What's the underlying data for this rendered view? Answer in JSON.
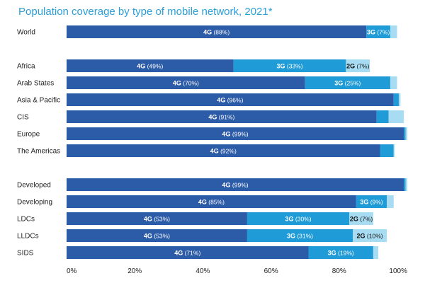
{
  "chart_data": {
    "type": "bar",
    "orientation": "horizontal",
    "stacked": true,
    "title": "Population coverage by type of mobile network, 2021*",
    "xlim": [
      0,
      100
    ],
    "x_ticks": [
      "0%",
      "20%",
      "40%",
      "60%",
      "80%",
      "100%"
    ],
    "grid": false,
    "legend": "none",
    "series_keys": [
      "4G",
      "3G",
      "2G",
      "rest"
    ],
    "colors": {
      "4G": "#2c5ba8",
      "3G": "#1f9bd7",
      "2G": "#a8dcf2",
      "rest": "#d6eff9"
    },
    "groups": [
      {
        "categories": [
          {
            "label": "World",
            "values": {
              "4G": 88,
              "3G": 7,
              "2G": 2,
              "rest": 0
            },
            "labels": {
              "4G": {
                "tech": "4G",
                "pct": "(88%)"
              },
              "3G": {
                "tech": "3G",
                "pct": "(7%)"
              }
            }
          }
        ]
      },
      {
        "categories": [
          {
            "label": "Africa",
            "values": {
              "4G": 49,
              "3G": 33,
              "2G": 7,
              "rest": 0
            },
            "labels": {
              "4G": {
                "tech": "4G",
                "pct": "(49%)"
              },
              "3G": {
                "tech": "3G",
                "pct": "(33%)"
              },
              "2G": {
                "tech": "2G",
                "pct": "(7%)"
              }
            }
          },
          {
            "label": "Arab States",
            "values": {
              "4G": 70,
              "3G": 25,
              "2G": 2,
              "rest": 0
            },
            "labels": {
              "4G": {
                "tech": "4G",
                "pct": "(70%)"
              },
              "3G": {
                "tech": "3G",
                "pct": "(25%)"
              }
            }
          },
          {
            "label": "Asia & Pacific",
            "values": {
              "4G": 96,
              "3G": 1.5,
              "2G": 0.5,
              "rest": 0
            },
            "labels": {
              "4G": {
                "tech": "4G",
                "pct": "(96%)"
              }
            }
          },
          {
            "label": "CIS",
            "values": {
              "4G": 91,
              "3G": 3.5,
              "2G": 4.5,
              "rest": 0
            },
            "labels": {
              "4G": {
                "tech": "4G",
                "pct": "(91%)"
              }
            }
          },
          {
            "label": "Europe",
            "values": {
              "4G": 99,
              "3G": 0.5,
              "2G": 0.5,
              "rest": 0
            },
            "labels": {
              "4G": {
                "tech": "4G",
                "pct": "(99%)"
              }
            }
          },
          {
            "label": "The Americas",
            "values": {
              "4G": 92,
              "3G": 4,
              "2G": 0.3,
              "rest": 0
            },
            "labels": {
              "4G": {
                "tech": "4G",
                "pct": "(92%)"
              }
            }
          }
        ]
      },
      {
        "categories": [
          {
            "label": "Developed",
            "values": {
              "4G": 99,
              "3G": 0.5,
              "2G": 0.5,
              "rest": 0
            },
            "labels": {
              "4G": {
                "tech": "4G",
                "pct": "(99%)"
              }
            }
          },
          {
            "label": "Developing",
            "values": {
              "4G": 85,
              "3G": 9,
              "2G": 2,
              "rest": 0
            },
            "labels": {
              "4G": {
                "tech": "4G",
                "pct": "(85%)"
              },
              "3G": {
                "tech": "3G",
                "pct": "(9%)"
              }
            }
          },
          {
            "label": "LDCs",
            "values": {
              "4G": 53,
              "3G": 30,
              "2G": 7,
              "rest": 0
            },
            "labels": {
              "4G": {
                "tech": "4G",
                "pct": "(53%)"
              },
              "3G": {
                "tech": "3G",
                "pct": "(30%)"
              },
              "2G": {
                "tech": "2G",
                "pct": "(7%)"
              }
            }
          },
          {
            "label": "LLDCs",
            "values": {
              "4G": 53,
              "3G": 31,
              "2G": 10,
              "rest": 0
            },
            "labels": {
              "4G": {
                "tech": "4G",
                "pct": "(53%)"
              },
              "3G": {
                "tech": "3G",
                "pct": "(31%)"
              },
              "2G": {
                "tech": "2G",
                "pct": "(10%)"
              }
            }
          },
          {
            "label": "SIDS",
            "values": {
              "4G": 71,
              "3G": 19,
              "2G": 1.5,
              "rest": 0
            },
            "labels": {
              "4G": {
                "tech": "4G",
                "pct": "(71%)"
              },
              "3G": {
                "tech": "3G",
                "pct": "(19%)"
              }
            }
          }
        ]
      }
    ]
  }
}
